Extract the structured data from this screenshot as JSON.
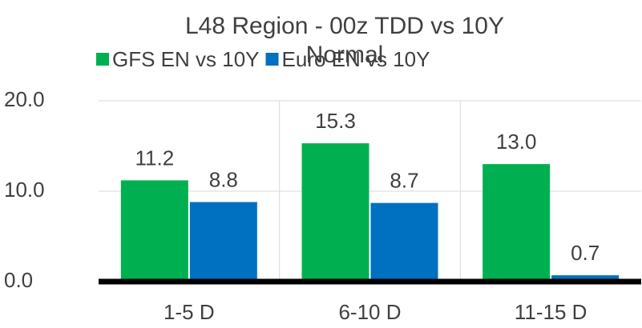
{
  "chart_data": {
    "type": "bar",
    "title": "L48 Region - 00z TDD vs 10Y Normal",
    "categories": [
      "1-5 D",
      "6-10 D",
      "11-15 D"
    ],
    "series": [
      {
        "name": "GFS EN vs 10Y",
        "color": "#00b050",
        "values": [
          11.2,
          15.3,
          13.0
        ],
        "value_labels": [
          "11.2",
          "15.3",
          "13.0"
        ]
      },
      {
        "name": "Euro EN vs 10Y",
        "color": "#0070c0",
        "values": [
          8.8,
          8.7,
          0.7
        ],
        "value_labels": [
          "8.8",
          "8.7",
          "0.7"
        ]
      }
    ],
    "ylim": [
      0,
      20
    ],
    "yticks": [
      {
        "value": 0,
        "label": "0.0"
      },
      {
        "value": 10,
        "label": "10.0"
      },
      {
        "value": 20,
        "label": "20.0"
      }
    ],
    "grid": true,
    "legend": "top"
  }
}
